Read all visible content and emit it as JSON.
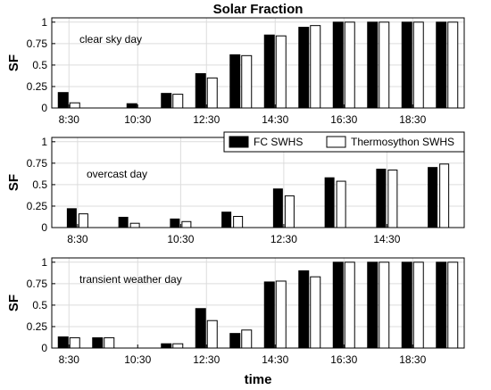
{
  "chart_data": {
    "title": "Solar Fraction",
    "xlabel": "time",
    "legend": {
      "placement": "top-right of middle panel",
      "entries": [
        {
          "label": "FC SWHS",
          "color": "#000000"
        },
        {
          "label": "Thermosython SWHS",
          "color": "#ffffff"
        }
      ]
    },
    "panels": [
      {
        "type": "bar",
        "annotation": "clear sky day",
        "ylabel": "SF",
        "ylim": [
          0,
          1.05
        ],
        "yticks": [
          "0",
          "0.25",
          "0.5",
          "0.75",
          "1"
        ],
        "grid": true,
        "categories": [
          "8:30",
          "9:30",
          "10:30",
          "11:30",
          "12:30",
          "13:30",
          "14:30",
          "15:30",
          "16:30",
          "17:30",
          "18:30",
          "19:30"
        ],
        "xtick_labels": [
          "8:30",
          "10:30",
          "12:30",
          "14:30",
          "16:30",
          "18:30"
        ],
        "series": [
          {
            "name": "FC SWHS",
            "values": [
              0.18,
              0.0,
              0.05,
              0.17,
              0.4,
              0.62,
              0.85,
              0.94,
              1.0,
              1.0,
              1.0,
              1.0
            ]
          },
          {
            "name": "Thermosython SWHS",
            "values": [
              0.06,
              0.0,
              0.0,
              0.16,
              0.35,
              0.61,
              0.84,
              0.96,
              1.0,
              1.0,
              1.0,
              1.0
            ]
          }
        ]
      },
      {
        "type": "bar",
        "annotation": "overcast day",
        "ylabel": "SF",
        "ylim": [
          0,
          1.05
        ],
        "yticks": [
          "0",
          "0.25",
          "0.5",
          "0.75",
          "1"
        ],
        "grid": true,
        "categories": [
          "8:30",
          "9:30",
          "10:30",
          "11:30",
          "12:30",
          "13:30",
          "14:30",
          "15:30"
        ],
        "xtick_labels": [
          "8:30",
          "10:30",
          "12:30",
          "14:30"
        ],
        "series": [
          {
            "name": "FC SWHS",
            "values": [
              0.22,
              0.12,
              0.1,
              0.18,
              0.45,
              0.58,
              0.68,
              0.7
            ]
          },
          {
            "name": "Thermosython SWHS",
            "values": [
              0.16,
              0.05,
              0.07,
              0.13,
              0.37,
              0.54,
              0.67,
              0.74
            ]
          }
        ]
      },
      {
        "type": "bar",
        "annotation": "transient weather day",
        "ylabel": "SF",
        "ylim": [
          0,
          1.05
        ],
        "yticks": [
          "0",
          "0.25",
          "0.5",
          "0.75",
          "1"
        ],
        "grid": true,
        "categories": [
          "8:30",
          "9:30",
          "10:30",
          "11:30",
          "12:30",
          "13:30",
          "14:30",
          "15:30",
          "16:30",
          "17:30",
          "18:30",
          "19:30"
        ],
        "xtick_labels": [
          "8:30",
          "10:30",
          "12:30",
          "14:30",
          "16:30",
          "18:30"
        ],
        "series": [
          {
            "name": "FC SWHS",
            "values": [
              0.13,
              0.12,
              0.0,
              0.05,
              0.46,
              0.17,
              0.77,
              0.9,
              1.0,
              1.0,
              1.0,
              1.0
            ]
          },
          {
            "name": "Thermosython SWHS",
            "values": [
              0.12,
              0.12,
              0.0,
              0.05,
              0.32,
              0.21,
              0.78,
              0.83,
              1.0,
              1.0,
              1.0,
              1.0
            ]
          }
        ]
      }
    ]
  }
}
